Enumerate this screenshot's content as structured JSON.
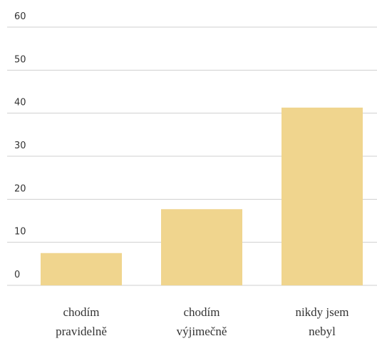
{
  "chart_data": {
    "type": "bar",
    "categories": [
      "chodím pravidelně",
      "chodím výjimečně",
      "nikdy jsem nebyl"
    ],
    "values": [
      7.5,
      17.7,
      41.3
    ],
    "color": "#f0d58e",
    "ylim": [
      0,
      60
    ],
    "yticks": [
      0,
      10,
      20,
      30,
      40,
      50,
      60
    ],
    "grid": true
  }
}
